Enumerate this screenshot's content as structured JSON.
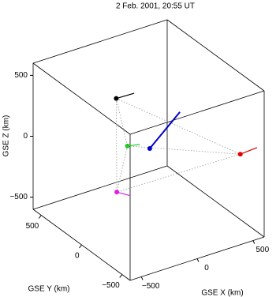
{
  "chart_data": {
    "type": "scatter3d",
    "title": "2 Feb. 2001, 20:55 UT",
    "xlabel": "GSE X (km)",
    "ylabel": "GSE Y (km)",
    "zlabel": "GSE Z (km)",
    "xlim": [
      -600,
      600
    ],
    "ylim": [
      -600,
      600
    ],
    "zlim": [
      -600,
      600
    ],
    "xticks": [
      {
        "value": -500,
        "label": "−500"
      },
      0,
      500
    ],
    "yticks": [
      {
        "value": -500,
        "label": "−500"
      },
      0,
      500
    ],
    "zticks": [
      {
        "value": -500,
        "label": "−500"
      },
      0,
      500
    ],
    "box": true,
    "series": [
      {
        "color": "#000000",
        "values": [
          -290,
          0,
          510
        ],
        "end": [
          -130,
          0,
          505
        ],
        "vertex": true
      },
      {
        "color": "#22cc22",
        "values": [
          -190,
          0,
          90
        ],
        "end": [
          -80,
          0,
          70
        ],
        "vertex": true
      },
      {
        "color": "#0000cc",
        "values": [
          10,
          0,
          10
        ],
        "end": [
          280,
          0,
          230
        ],
        "vertex": false
      },
      {
        "color": "#e00000",
        "values": [
          560,
          -360,
          -25
        ],
        "end": [
          710,
          -360,
          -15
        ],
        "vertex": true
      },
      {
        "color": "#e020e0",
        "values": [
          -285,
          0,
          -260
        ],
        "end": [
          -165,
          0,
          -325
        ],
        "vertex": true
      }
    ]
  }
}
